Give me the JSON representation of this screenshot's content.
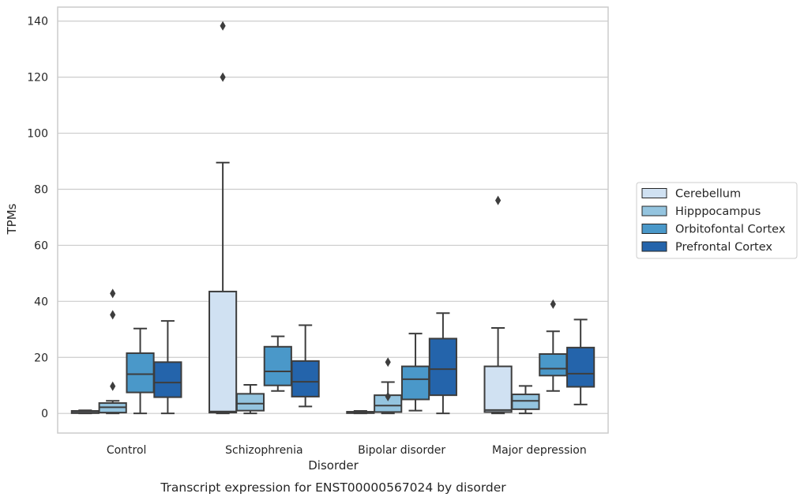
{
  "caption": "Transcript expression for ENST00000567024 by disorder",
  "chart_data": {
    "type": "box",
    "title": "",
    "xlabel": "Disorder",
    "ylabel": "TPMs",
    "ylim": [
      -7,
      145
    ],
    "yticks": [
      0,
      20,
      40,
      60,
      80,
      100,
      120,
      140
    ],
    "grid": "horizontal",
    "legend_position": "outside-right",
    "categories": [
      "Control",
      "Schizophrenia",
      "Bipolar disorder",
      "Major depression"
    ],
    "series": [
      {
        "name": "Cerebellum",
        "color": "#d0e1f2",
        "boxes": [
          {
            "whislo": 0,
            "q1": 0.1,
            "med": 0.3,
            "q3": 0.9,
            "whishi": 1.1,
            "fliers": []
          },
          {
            "whislo": 0,
            "q1": 0.3,
            "med": 0.7,
            "q3": 43.5,
            "whishi": 89.5,
            "fliers": [
              120,
              138.3
            ]
          },
          {
            "whislo": 0,
            "q1": 0.1,
            "med": 0.3,
            "q3": 0.6,
            "whishi": 0.9,
            "fliers": []
          },
          {
            "whislo": 0,
            "q1": 0.5,
            "med": 1.2,
            "q3": 16.8,
            "whishi": 30.5,
            "fliers": [
              76
            ]
          }
        ]
      },
      {
        "name": "Hipppocampus",
        "color": "#94c4df",
        "boxes": [
          {
            "whislo": 0,
            "q1": 0.3,
            "med": 2.2,
            "q3": 3.7,
            "whishi": 4.5,
            "fliers": [
              9.7,
              35.2,
              42.8
            ]
          },
          {
            "whislo": 0,
            "q1": 1.0,
            "med": 3.5,
            "q3": 7.0,
            "whishi": 10.2,
            "fliers": []
          },
          {
            "whislo": 0,
            "q1": 0.5,
            "med": 2.8,
            "q3": 6.5,
            "whishi": 11.2,
            "fliers": [
              6.0,
              18.3
            ]
          },
          {
            "whislo": 0,
            "q1": 1.5,
            "med": 4.5,
            "q3": 6.8,
            "whishi": 9.8,
            "fliers": []
          }
        ]
      },
      {
        "name": "Orbitofontal Cortex",
        "color": "#4a98c9",
        "boxes": [
          {
            "whislo": 0,
            "q1": 7.5,
            "med": 14.0,
            "q3": 21.5,
            "whishi": 30.3,
            "fliers": []
          },
          {
            "whislo": 8.0,
            "q1": 10.0,
            "med": 15.0,
            "q3": 23.8,
            "whishi": 27.5,
            "fliers": []
          },
          {
            "whislo": 1.0,
            "q1": 5.0,
            "med": 12.2,
            "q3": 16.8,
            "whishi": 28.5,
            "fliers": []
          },
          {
            "whislo": 8.0,
            "q1": 13.5,
            "med": 16.0,
            "q3": 21.2,
            "whishi": 29.3,
            "fliers": [
              39.0
            ]
          }
        ]
      },
      {
        "name": "Prefrontal Cortex",
        "color": "#2464ab",
        "boxes": [
          {
            "whislo": 0,
            "q1": 5.8,
            "med": 11.0,
            "q3": 18.3,
            "whishi": 33.0,
            "fliers": []
          },
          {
            "whislo": 2.5,
            "q1": 6.0,
            "med": 11.3,
            "q3": 18.7,
            "whishi": 31.5,
            "fliers": []
          },
          {
            "whislo": 0,
            "q1": 6.5,
            "med": 15.8,
            "q3": 26.7,
            "whishi": 35.8,
            "fliers": []
          },
          {
            "whislo": 3.2,
            "q1": 9.5,
            "med": 14.2,
            "q3": 23.5,
            "whishi": 33.5,
            "fliers": []
          }
        ]
      }
    ]
  }
}
